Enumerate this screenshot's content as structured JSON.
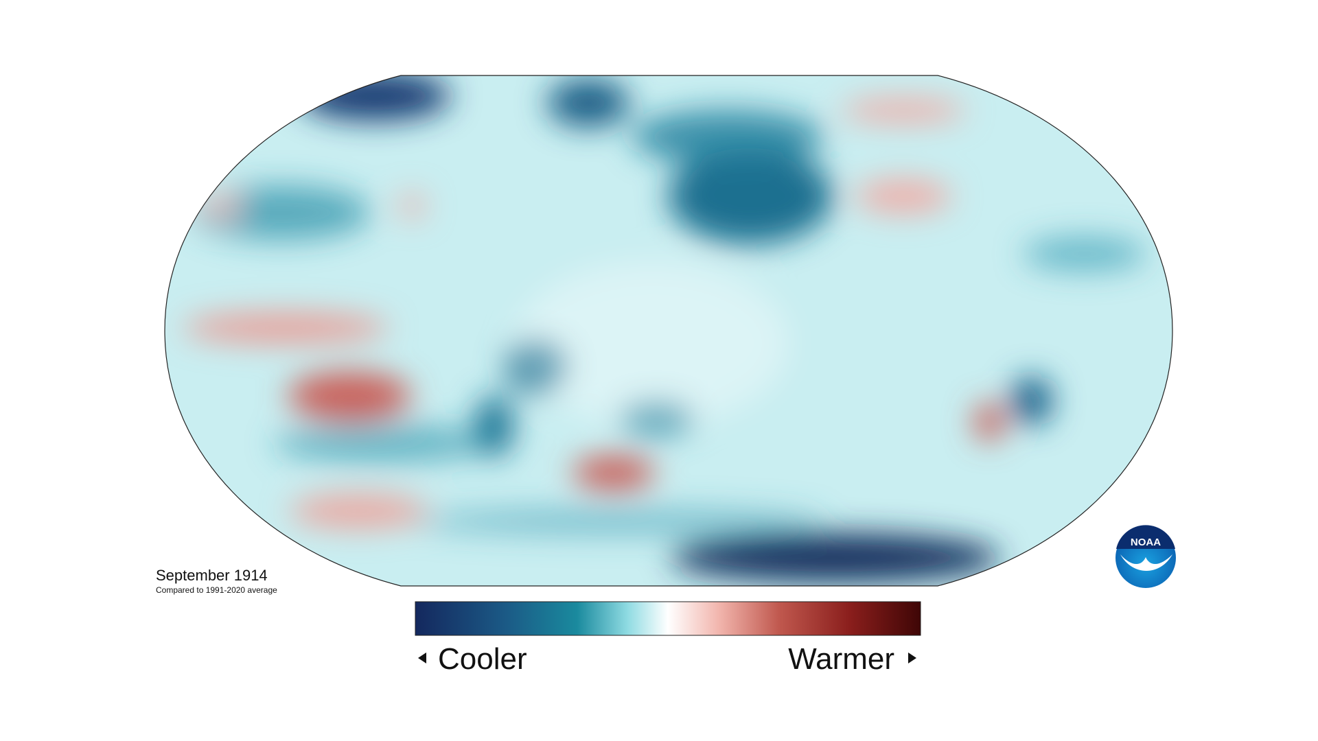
{
  "header": {
    "title": "September 1914",
    "subtitle": "Compared to 1991-2020 average"
  },
  "legend": {
    "low_label": "Cooler",
    "high_label": "Warmer"
  },
  "logo": {
    "text": "NOAA"
  }
}
